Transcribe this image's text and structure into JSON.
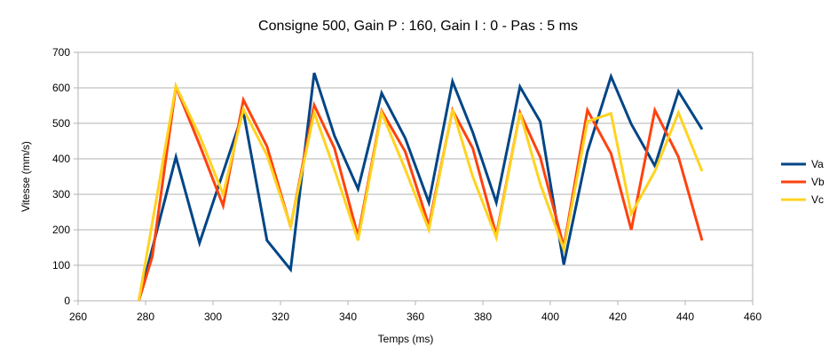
{
  "chart_data": {
    "type": "line",
    "title": "Consigne 500, Gain P : 160, Gain I : 0 - Pas :  5 ms",
    "xlabel": "Temps (ms)",
    "ylabel": "Vitesse (mm/s)",
    "xlim": [
      260,
      460
    ],
    "ylim": [
      0,
      700
    ],
    "xticks": [
      260,
      280,
      300,
      320,
      340,
      360,
      380,
      400,
      420,
      440,
      460
    ],
    "yticks": [
      0,
      100,
      200,
      300,
      400,
      500,
      600,
      700
    ],
    "grid": true,
    "legend": "right",
    "series": [
      {
        "name": "Va",
        "color": "#004586",
        "points": [
          [
            278,
            0
          ],
          [
            289,
            405
          ],
          [
            296,
            163
          ],
          [
            309,
            533
          ],
          [
            316,
            170
          ],
          [
            323,
            88
          ],
          [
            330,
            642
          ],
          [
            336,
            465
          ],
          [
            343,
            315
          ],
          [
            350,
            585
          ],
          [
            357,
            458
          ],
          [
            364,
            277
          ],
          [
            371,
            618
          ],
          [
            377,
            475
          ],
          [
            384,
            277
          ],
          [
            391,
            603
          ],
          [
            397,
            505
          ],
          [
            404,
            102
          ],
          [
            411,
            420
          ],
          [
            418,
            632
          ],
          [
            424,
            498
          ],
          [
            431,
            380
          ],
          [
            438,
            590
          ],
          [
            445,
            483
          ]
        ]
      },
      {
        "name": "Vb",
        "color": "#ff420e",
        "points": [
          [
            278,
            0
          ],
          [
            282,
            125
          ],
          [
            289,
            603
          ],
          [
            296,
            440
          ],
          [
            303,
            268
          ],
          [
            309,
            566
          ],
          [
            316,
            435
          ],
          [
            323,
            208
          ],
          [
            330,
            551
          ],
          [
            336,
            430
          ],
          [
            343,
            182
          ],
          [
            350,
            535
          ],
          [
            357,
            420
          ],
          [
            364,
            212
          ],
          [
            371,
            537
          ],
          [
            377,
            430
          ],
          [
            384,
            185
          ],
          [
            391,
            530
          ],
          [
            397,
            405
          ],
          [
            404,
            152
          ],
          [
            411,
            537
          ],
          [
            418,
            415
          ],
          [
            424,
            200
          ],
          [
            431,
            537
          ],
          [
            438,
            405
          ],
          [
            445,
            170
          ]
        ]
      },
      {
        "name": "Vc",
        "color": "#ffd320",
        "points": [
          [
            278,
            0
          ],
          [
            289,
            605
          ],
          [
            296,
            465
          ],
          [
            303,
            300
          ],
          [
            309,
            540
          ],
          [
            316,
            410
          ],
          [
            323,
            210
          ],
          [
            330,
            530
          ],
          [
            336,
            370
          ],
          [
            343,
            170
          ],
          [
            350,
            530
          ],
          [
            357,
            370
          ],
          [
            364,
            200
          ],
          [
            371,
            540
          ],
          [
            377,
            350
          ],
          [
            384,
            178
          ],
          [
            391,
            530
          ],
          [
            397,
            330
          ],
          [
            404,
            145
          ],
          [
            411,
            505
          ],
          [
            418,
            528
          ],
          [
            424,
            245
          ],
          [
            431,
            365
          ],
          [
            438,
            530
          ],
          [
            445,
            365
          ]
        ]
      }
    ]
  }
}
